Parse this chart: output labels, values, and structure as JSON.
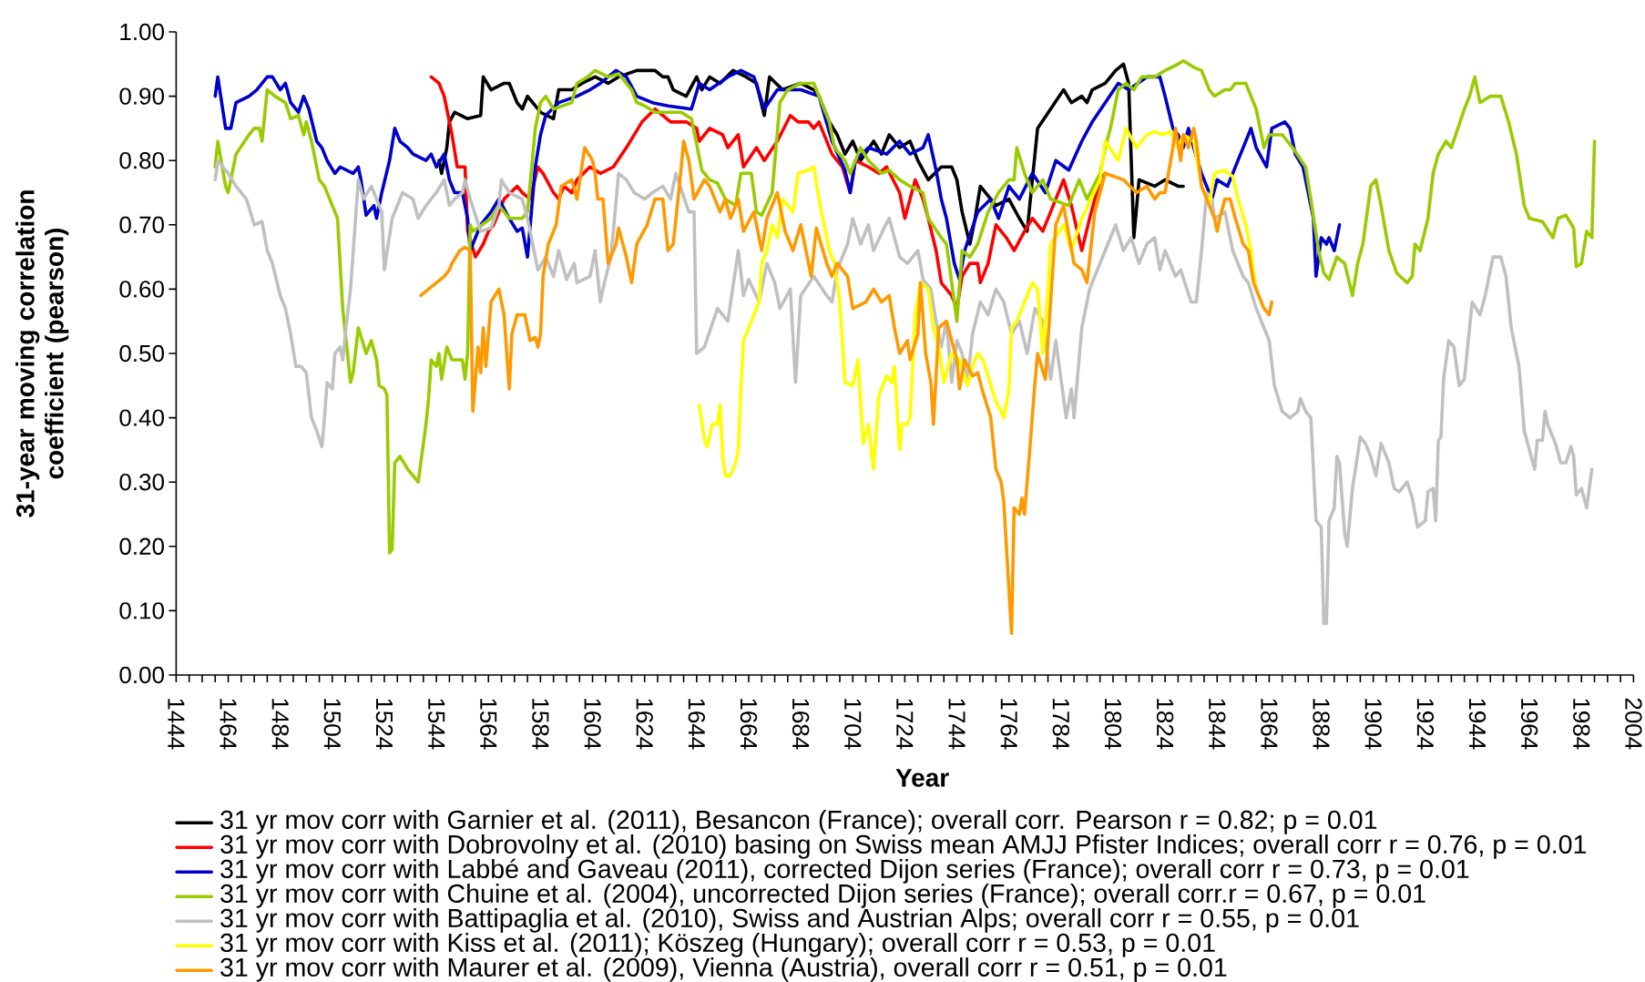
{
  "chart_data": {
    "type": "line",
    "xlabel": "Year",
    "ylabel": "31-year moving correlation coefficient (pearson)",
    "xlim": [
      1444,
      2004
    ],
    "ylim": [
      0,
      1
    ],
    "xticks": [
      1444,
      {
        "value": 1449,
        "label": null
      },
      {
        "value": 1454,
        "label": null
      },
      {
        "value": 1459,
        "label": null
      },
      1464,
      {
        "value": 1469,
        "label": null
      },
      {
        "value": 1474,
        "label": null
      },
      {
        "value": 1479,
        "label": null
      },
      1484,
      {
        "value": 1489,
        "label": null
      },
      {
        "value": 1494,
        "label": null
      },
      {
        "value": 1499,
        "label": null
      },
      1504,
      {
        "value": 1509,
        "label": null
      },
      {
        "value": 1514,
        "label": null
      },
      {
        "value": 1519,
        "label": null
      },
      1524,
      {
        "value": 1529,
        "label": null
      },
      {
        "value": 1534,
        "label": null
      },
      {
        "value": 1539,
        "label": null
      },
      1544,
      {
        "value": 1549,
        "label": null
      },
      {
        "value": 1554,
        "label": null
      },
      {
        "value": 1559,
        "label": null
      },
      1564,
      {
        "value": 1569,
        "label": null
      },
      {
        "value": 1574,
        "label": null
      },
      {
        "value": 1579,
        "label": null
      },
      1584,
      {
        "value": 1589,
        "label": null
      },
      {
        "value": 1594,
        "label": null
      },
      {
        "value": 1599,
        "label": null
      },
      1604,
      {
        "value": 1609,
        "label": null
      },
      {
        "value": 1614,
        "label": null
      },
      {
        "value": 1619,
        "label": null
      },
      1624,
      {
        "value": 1629,
        "label": null
      },
      {
        "value": 1634,
        "label": null
      },
      {
        "value": 1639,
        "label": null
      },
      1644,
      {
        "value": 1649,
        "label": null
      },
      {
        "value": 1654,
        "label": null
      },
      {
        "value": 1659,
        "label": null
      },
      1664,
      {
        "value": 1669,
        "label": null
      },
      {
        "value": 1674,
        "label": null
      },
      {
        "value": 1679,
        "label": null
      },
      1684,
      {
        "value": 1689,
        "label": null
      },
      {
        "value": 1694,
        "label": null
      },
      {
        "value": 1699,
        "label": null
      },
      1704,
      {
        "value": 1709,
        "label": null
      },
      {
        "value": 1714,
        "label": null
      },
      {
        "value": 1719,
        "label": null
      },
      1724,
      {
        "value": 1729,
        "label": null
      },
      {
        "value": 1734,
        "label": null
      },
      {
        "value": 1739,
        "label": null
      },
      1744,
      {
        "value": 1749,
        "label": null
      },
      {
        "value": 1754,
        "label": null
      },
      {
        "value": 1759,
        "label": null
      },
      1764,
      {
        "value": 1769,
        "label": null
      },
      {
        "value": 1774,
        "label": null
      },
      {
        "value": 1779,
        "label": null
      },
      1784,
      {
        "value": 1789,
        "label": null
      },
      {
        "value": 1794,
        "label": null
      },
      {
        "value": 1799,
        "label": null
      },
      1804,
      {
        "value": 1809,
        "label": null
      },
      {
        "value": 1814,
        "label": null
      },
      {
        "value": 1819,
        "label": null
      },
      1824,
      {
        "value": 1829,
        "label": null
      },
      {
        "value": 1834,
        "label": null
      },
      {
        "value": 1839,
        "label": null
      },
      1844,
      {
        "value": 1849,
        "label": null
      },
      {
        "value": 1854,
        "label": null
      },
      {
        "value": 1859,
        "label": null
      },
      1864,
      {
        "value": 1869,
        "label": null
      },
      {
        "value": 1874,
        "label": null
      },
      {
        "value": 1879,
        "label": null
      },
      1884,
      {
        "value": 1889,
        "label": null
      },
      {
        "value": 1894,
        "label": null
      },
      {
        "value": 1899,
        "label": null
      },
      1904,
      {
        "value": 1909,
        "label": null
      },
      {
        "value": 1914,
        "label": null
      },
      {
        "value": 1919,
        "label": null
      },
      1924,
      {
        "value": 1929,
        "label": null
      },
      {
        "value": 1934,
        "label": null
      },
      {
        "value": 1939,
        "label": null
      },
      1944,
      {
        "value": 1949,
        "label": null
      },
      {
        "value": 1954,
        "label": null
      },
      {
        "value": 1959,
        "label": null
      },
      1964,
      {
        "value": 1969,
        "label": null
      },
      {
        "value": 1974,
        "label": null
      },
      {
        "value": 1979,
        "label": null
      },
      1984,
      {
        "value": 1989,
        "label": null
      },
      {
        "value": 1994,
        "label": null
      },
      {
        "value": 1999,
        "label": null
      },
      2004
    ],
    "yticks": [
      {
        "value": 0,
        "label": "0.00"
      },
      {
        "value": 0.1,
        "label": "0.10"
      },
      {
        "value": 0.2,
        "label": "0.20"
      },
      {
        "value": 0.3,
        "label": "0.30"
      },
      {
        "value": 0.4,
        "label": "0.40"
      },
      {
        "value": 0.5,
        "label": "0.50"
      },
      {
        "value": 0.6,
        "label": "0.60"
      },
      {
        "value": 0.7,
        "label": "0.70"
      },
      {
        "value": 0.8,
        "label": "0.80"
      },
      {
        "value": 0.9,
        "label": "0.90"
      },
      {
        "value": 1,
        "label": "1.00"
      }
    ],
    "legend": "bottom",
    "series": [
      {
        "name": "31 yr mov corr with Garnier et al. (2011), Besancon (France); overall corr. Pearson r = 0.82; p = 0.01",
        "color": "#000000",
        "x": [
          1545,
          1546,
          1548,
          1549,
          1551,
          1556,
          1561,
          1562,
          1565,
          1570,
          1572,
          1575,
          1577,
          1579,
          1584,
          1589,
          1591,
          1596,
          1600,
          1605,
          1610,
          1614,
          1621,
          1628,
          1631,
          1633,
          1635,
          1640,
          1644,
          1646,
          1649,
          1653,
          1658,
          1663,
          1667,
          1670,
          1672,
          1677,
          1684,
          1689,
          1691,
          1695,
          1698,
          1701,
          1704,
          1707,
          1712,
          1715,
          1718,
          1722,
          1726,
          1729,
          1733,
          1738,
          1742,
          1744,
          1746,
          1749,
          1751,
          1753,
          1759,
          1764,
          1768,
          1771,
          1773,
          1775,
          1780,
          1785,
          1788,
          1792,
          1794,
          1796,
          1801,
          1805,
          1808,
          1810,
          1812,
          1814,
          1820,
          1824,
          1829,
          1831
        ],
        "values": [
          0.8,
          0.78,
          0.82,
          0.86,
          0.875,
          0.865,
          0.87,
          0.93,
          0.91,
          0.92,
          0.92,
          0.89,
          0.88,
          0.9,
          0.875,
          0.865,
          0.91,
          0.91,
          0.92,
          0.93,
          0.92,
          0.93,
          0.94,
          0.94,
          0.93,
          0.93,
          0.91,
          0.9,
          0.93,
          0.91,
          0.93,
          0.92,
          0.94,
          0.93,
          0.92,
          0.87,
          0.93,
          0.91,
          0.92,
          0.91,
          0.9,
          0.86,
          0.84,
          0.81,
          0.83,
          0.8,
          0.83,
          0.81,
          0.84,
          0.82,
          0.83,
          0.8,
          0.77,
          0.79,
          0.79,
          0.77,
          0.72,
          0.67,
          0.71,
          0.76,
          0.73,
          0.74,
          0.71,
          0.69,
          0.77,
          0.85,
          0.88,
          0.91,
          0.89,
          0.9,
          0.89,
          0.91,
          0.92,
          0.94,
          0.95,
          0.92,
          0.68,
          0.77,
          0.76,
          0.77,
          0.76,
          0.76
        ]
      },
      {
        "name": "31 yr mov corr with Dobrovolny et al. (2010) basing on Swiss mean AMJJ Pfister Indices; overall corr r = 0.76, p = 0.01",
        "color": "#ff0000",
        "x": [
          1542,
          1545,
          1547,
          1550,
          1552,
          1555,
          1556,
          1559,
          1562,
          1564,
          1566,
          1570,
          1575,
          1577,
          1580,
          1583,
          1585,
          1589,
          1591,
          1593,
          1596,
          1598,
          1603,
          1607,
          1612,
          1617,
          1620,
          1623,
          1628,
          1631,
          1634,
          1640,
          1644,
          1645,
          1649,
          1654,
          1656,
          1660,
          1662,
          1667,
          1670,
          1675,
          1680,
          1683,
          1687,
          1689,
          1691,
          1696,
          1700,
          1703,
          1705,
          1710,
          1714,
          1717,
          1722,
          1724,
          1728,
          1731,
          1733,
          1736,
          1738,
          1742,
          1744,
          1746,
          1749,
          1752,
          1753,
          1756,
          1759,
          1763,
          1766,
          1770,
          1773,
          1777,
          1782,
          1785,
          1788,
          1792,
          1795,
          1799,
          1801
        ],
        "values": [
          0.93,
          0.92,
          0.9,
          0.84,
          0.79,
          0.79,
          0.69,
          0.65,
          0.67,
          0.69,
          0.7,
          0.74,
          0.76,
          0.75,
          0.74,
          0.79,
          0.78,
          0.75,
          0.74,
          0.76,
          0.75,
          0.77,
          0.79,
          0.78,
          0.79,
          0.82,
          0.84,
          0.86,
          0.88,
          0.87,
          0.86,
          0.86,
          0.85,
          0.83,
          0.85,
          0.84,
          0.82,
          0.84,
          0.79,
          0.82,
          0.8,
          0.83,
          0.87,
          0.86,
          0.86,
          0.85,
          0.86,
          0.81,
          0.79,
          0.75,
          0.8,
          0.79,
          0.78,
          0.79,
          0.75,
          0.71,
          0.77,
          0.74,
          0.71,
          0.66,
          0.61,
          0.59,
          0.57,
          0.62,
          0.64,
          0.64,
          0.61,
          0.64,
          0.7,
          0.68,
          0.66,
          0.69,
          0.71,
          0.69,
          0.74,
          0.77,
          0.73,
          0.66,
          0.71,
          0.77,
          0.78
        ]
      },
      {
        "name": "31 yr mov corr with Labbé and Gaveau (2011), corrected Dijon series (France); overall corr r = 0.73, p = 0.01",
        "color": "#0000cc",
        "x": [
          1459,
          1460,
          1463,
          1465,
          1467,
          1472,
          1475,
          1479,
          1481,
          1484,
          1486,
          1488,
          1491,
          1493,
          1495,
          1498,
          1500,
          1502,
          1505,
          1507,
          1512,
          1514,
          1515,
          1517,
          1520,
          1521,
          1523,
          1526,
          1528,
          1530,
          1533,
          1535,
          1540,
          1542,
          1544,
          1547,
          1549,
          1551,
          1554,
          1556,
          1557,
          1561,
          1565,
          1568,
          1572,
          1575,
          1577,
          1579,
          1582,
          1584,
          1586,
          1591,
          1598,
          1603,
          1607,
          1613,
          1617,
          1621,
          1627,
          1633,
          1642,
          1645,
          1649,
          1656,
          1661,
          1666,
          1670,
          1675,
          1684,
          1691,
          1696,
          1701,
          1703,
          1705,
          1710,
          1717,
          1722,
          1726,
          1731,
          1733,
          1736,
          1738,
          1740,
          1743,
          1745,
          1747,
          1752,
          1757,
          1760,
          1764,
          1768,
          1773,
          1778,
          1782,
          1787,
          1792,
          1796,
          1801,
          1806,
          1810,
          1817,
          1822,
          1824,
          1827,
          1829,
          1831,
          1833,
          1835,
          1838,
          1842,
          1844,
          1848,
          1850,
          1852,
          1854,
          1857,
          1859,
          1863,
          1865,
          1870,
          1872,
          1874,
          1877,
          1879,
          1881,
          1882,
          1884,
          1886,
          1887,
          1889,
          1891
        ],
        "values": [
          0.9,
          0.93,
          0.85,
          0.85,
          0.89,
          0.9,
          0.91,
          0.93,
          0.93,
          0.91,
          0.92,
          0.89,
          0.875,
          0.9,
          0.88,
          0.83,
          0.82,
          0.8,
          0.78,
          0.79,
          0.78,
          0.79,
          0.77,
          0.715,
          0.73,
          0.71,
          0.75,
          0.8,
          0.85,
          0.83,
          0.82,
          0.81,
          0.8,
          0.81,
          0.79,
          0.81,
          0.77,
          0.75,
          0.75,
          0.71,
          0.66,
          0.7,
          0.72,
          0.74,
          0.71,
          0.69,
          0.695,
          0.65,
          0.79,
          0.84,
          0.87,
          0.89,
          0.9,
          0.91,
          0.92,
          0.94,
          0.93,
          0.9,
          0.89,
          0.885,
          0.88,
          0.92,
          0.91,
          0.93,
          0.94,
          0.93,
          0.88,
          0.91,
          0.91,
          0.9,
          0.83,
          0.785,
          0.75,
          0.8,
          0.82,
          0.81,
          0.83,
          0.81,
          0.82,
          0.84,
          0.785,
          0.74,
          0.71,
          0.64,
          0.615,
          0.66,
          0.72,
          0.74,
          0.71,
          0.76,
          0.74,
          0.78,
          0.75,
          0.8,
          0.785,
          0.83,
          0.86,
          0.89,
          0.92,
          0.91,
          0.93,
          0.93,
          0.9,
          0.85,
          0.84,
          0.82,
          0.85,
          0.82,
          0.78,
          0.74,
          0.77,
          0.76,
          0.78,
          0.8,
          0.82,
          0.85,
          0.82,
          0.79,
          0.85,
          0.86,
          0.85,
          0.81,
          0.79,
          0.75,
          0.71,
          0.62,
          0.68,
          0.67,
          0.68,
          0.66,
          0.7
        ]
      },
      {
        "name": "31 yr mov corr with Chuine et al. (2004), uncorrected Dijon series (France); overall corr.r = 0.67, p = 0.01",
        "color": "#99cc00",
        "x": [
          1459,
          1460,
          1463,
          1464,
          1467,
          1472,
          1474,
          1476,
          1477,
          1479,
          1482,
          1486,
          1488,
          1491,
          1493,
          1494,
          1496,
          1499,
          1501,
          1503,
          1505,
          1506,
          1508,
          1511,
          1512,
          1514,
          1517,
          1519,
          1521,
          1522,
          1524,
          1525,
          1526,
          1527,
          1528,
          1530,
          1533,
          1535,
          1537,
          1540,
          1541,
          1542,
          1544,
          1545,
          1546,
          1548,
          1550,
          1554,
          1555,
          1556,
          1557,
          1558,
          1565,
          1568,
          1572,
          1577,
          1579,
          1582,
          1584,
          1586,
          1589,
          1596,
          1598,
          1602,
          1605,
          1610,
          1614,
          1619,
          1621,
          1624,
          1628,
          1638,
          1642,
          1646,
          1649,
          1652,
          1655,
          1659,
          1661,
          1665,
          1667,
          1669,
          1673,
          1676,
          1679,
          1684,
          1689,
          1691,
          1695,
          1697,
          1701,
          1703,
          1707,
          1710,
          1715,
          1718,
          1722,
          1726,
          1731,
          1733,
          1738,
          1740,
          1742,
          1744,
          1746,
          1749,
          1752,
          1756,
          1760,
          1764,
          1766,
          1767,
          1770,
          1773,
          1777,
          1780,
          1787,
          1791,
          1794,
          1799,
          1801,
          1803,
          1806,
          1809,
          1812,
          1815,
          1820,
          1824,
          1829,
          1831,
          1835,
          1838,
          1841,
          1843,
          1847,
          1849,
          1851,
          1855,
          1857,
          1859,
          1862,
          1864,
          1869,
          1873,
          1878,
          1880,
          1883,
          1885,
          1887,
          1890,
          1893,
          1896,
          1898,
          1900,
          1903,
          1905,
          1907,
          1910,
          1913,
          1917,
          1919,
          1920,
          1922,
          1925,
          1927,
          1929,
          1932,
          1934,
          1939,
          1941,
          1943,
          1945,
          1949,
          1953,
          1956,
          1959,
          1962,
          1964,
          1969,
          1973,
          1975,
          1978,
          1981,
          1982,
          1984,
          1986,
          1988,
          1989
        ],
        "values": [
          0.79,
          0.83,
          0.76,
          0.75,
          0.81,
          0.84,
          0.85,
          0.85,
          0.83,
          0.91,
          0.9,
          0.89,
          0.865,
          0.87,
          0.84,
          0.86,
          0.83,
          0.77,
          0.76,
          0.74,
          0.72,
          0.71,
          0.57,
          0.455,
          0.47,
          0.54,
          0.5,
          0.52,
          0.49,
          0.45,
          0.445,
          0.435,
          0.19,
          0.195,
          0.33,
          0.34,
          0.32,
          0.31,
          0.3,
          0.39,
          0.43,
          0.49,
          0.48,
          0.5,
          0.46,
          0.51,
          0.49,
          0.49,
          0.46,
          0.5,
          0.7,
          0.69,
          0.71,
          0.73,
          0.71,
          0.71,
          0.72,
          0.85,
          0.89,
          0.9,
          0.88,
          0.89,
          0.92,
          0.93,
          0.94,
          0.93,
          0.935,
          0.91,
          0.89,
          0.885,
          0.875,
          0.875,
          0.865,
          0.785,
          0.77,
          0.765,
          0.74,
          0.73,
          0.78,
          0.78,
          0.72,
          0.715,
          0.75,
          0.89,
          0.91,
          0.92,
          0.92,
          0.9,
          0.86,
          0.82,
          0.8,
          0.78,
          0.82,
          0.8,
          0.78,
          0.785,
          0.77,
          0.76,
          0.75,
          0.71,
          0.68,
          0.67,
          0.61,
          0.55,
          0.66,
          0.65,
          0.67,
          0.72,
          0.75,
          0.77,
          0.77,
          0.82,
          0.78,
          0.75,
          0.77,
          0.74,
          0.73,
          0.77,
          0.74,
          0.78,
          0.82,
          0.85,
          0.91,
          0.92,
          0.91,
          0.93,
          0.93,
          0.94,
          0.95,
          0.955,
          0.945,
          0.94,
          0.91,
          0.9,
          0.91,
          0.91,
          0.92,
          0.92,
          0.9,
          0.88,
          0.82,
          0.84,
          0.84,
          0.82,
          0.79,
          0.74,
          0.66,
          0.625,
          0.615,
          0.65,
          0.64,
          0.59,
          0.64,
          0.67,
          0.76,
          0.77,
          0.73,
          0.66,
          0.625,
          0.61,
          0.62,
          0.67,
          0.66,
          0.71,
          0.78,
          0.81,
          0.83,
          0.82,
          0.88,
          0.9,
          0.93,
          0.89,
          0.9,
          0.9,
          0.86,
          0.81,
          0.73,
          0.71,
          0.705,
          0.68,
          0.71,
          0.715,
          0.695,
          0.635,
          0.64,
          0.69,
          0.68,
          0.83
        ]
      },
      {
        "name": "31 yr mov corr with Battipaglia et al. (2010), Swiss and Austrian Alps; overall corr r = 0.55, p = 0.01",
        "color": "#c0c0c0",
        "x": [
          1459,
          1460,
          1464,
          1467,
          1471,
          1474,
          1477,
          1479,
          1481,
          1484,
          1486,
          1488,
          1490,
          1492,
          1494,
          1496,
          1498,
          1500,
          1501,
          1502,
          1504,
          1505,
          1507,
          1508,
          1509,
          1511,
          1514,
          1516,
          1519,
          1521,
          1523,
          1524,
          1527,
          1529,
          1531,
          1535,
          1537,
          1540,
          1544,
          1547,
          1549,
          1551,
          1554,
          1555,
          1557,
          1561,
          1565,
          1568,
          1569,
          1572,
          1577,
          1579,
          1583,
          1586,
          1589,
          1591,
          1594,
          1597,
          1598,
          1603,
          1605,
          1607,
          1608,
          1611,
          1612,
          1614,
          1617,
          1620,
          1624,
          1627,
          1631,
          1634,
          1636,
          1641,
          1643,
          1644,
          1647,
          1652,
          1656,
          1660,
          1662,
          1664,
          1668,
          1671,
          1674,
          1676,
          1680,
          1682,
          1684,
          1689,
          1694,
          1696,
          1698,
          1702,
          1704,
          1707,
          1710,
          1712,
          1716,
          1718,
          1722,
          1725,
          1729,
          1731,
          1734,
          1736,
          1738,
          1740,
          1742,
          1744,
          1746,
          1748,
          1750,
          1753,
          1756,
          1759,
          1762,
          1765,
          1768,
          1771,
          1774,
          1777,
          1780,
          1782,
          1786,
          1788,
          1789,
          1792,
          1795,
          1798,
          1801,
          1805,
          1808,
          1811,
          1814,
          1817,
          1820,
          1822,
          1824,
          1828,
          1830,
          1834,
          1836,
          1838,
          1840,
          1842,
          1843,
          1847,
          1850,
          1854,
          1856,
          1859,
          1862,
          1864,
          1866,
          1869,
          1872,
          1875,
          1876,
          1878,
          1880,
          1882,
          1884,
          1885,
          1886,
          1887,
          1889,
          1890,
          1891,
          1893,
          1894,
          1896,
          1899,
          1901,
          1903,
          1905,
          1907,
          1910,
          1912,
          1914,
          1917,
          1919,
          1921,
          1924,
          1925,
          1927,
          1928,
          1929,
          1930,
          1931,
          1933,
          1935,
          1937,
          1939,
          1941,
          1942,
          1945,
          1947,
          1950,
          1953,
          1955,
          1957,
          1960,
          1962,
          1964,
          1966,
          1967,
          1969,
          1970,
          1971,
          1974,
          1976,
          1978,
          1980,
          1981,
          1982,
          1984,
          1986,
          1987,
          1988
        ],
        "values": [
          0.77,
          0.8,
          0.78,
          0.76,
          0.74,
          0.7,
          0.705,
          0.66,
          0.64,
          0.59,
          0.57,
          0.53,
          0.48,
          0.48,
          0.47,
          0.4,
          0.38,
          0.355,
          0.4,
          0.455,
          0.445,
          0.5,
          0.51,
          0.49,
          0.53,
          0.6,
          0.77,
          0.74,
          0.76,
          0.74,
          0.72,
          0.63,
          0.71,
          0.73,
          0.75,
          0.74,
          0.71,
          0.73,
          0.75,
          0.77,
          0.73,
          0.74,
          0.75,
          0.77,
          0.74,
          0.69,
          0.695,
          0.73,
          0.77,
          0.75,
          0.74,
          0.71,
          0.63,
          0.65,
          0.62,
          0.66,
          0.615,
          0.64,
          0.61,
          0.62,
          0.66,
          0.58,
          0.6,
          0.65,
          0.69,
          0.78,
          0.77,
          0.75,
          0.74,
          0.75,
          0.76,
          0.74,
          0.78,
          0.72,
          0.72,
          0.5,
          0.51,
          0.57,
          0.55,
          0.66,
          0.59,
          0.615,
          0.58,
          0.64,
          0.61,
          0.57,
          0.6,
          0.455,
          0.59,
          0.62,
          0.59,
          0.58,
          0.63,
          0.67,
          0.71,
          0.67,
          0.7,
          0.66,
          0.695,
          0.71,
          0.65,
          0.64,
          0.66,
          0.615,
          0.6,
          0.55,
          0.51,
          0.55,
          0.455,
          0.52,
          0.5,
          0.455,
          0.53,
          0.58,
          0.56,
          0.6,
          0.58,
          0.53,
          0.55,
          0.5,
          0.57,
          0.55,
          0.46,
          0.52,
          0.4,
          0.445,
          0.4,
          0.54,
          0.6,
          0.63,
          0.66,
          0.7,
          0.66,
          0.68,
          0.64,
          0.67,
          0.68,
          0.63,
          0.66,
          0.62,
          0.63,
          0.58,
          0.58,
          0.66,
          0.75,
          0.74,
          0.71,
          0.72,
          0.66,
          0.62,
          0.61,
          0.57,
          0.54,
          0.52,
          0.45,
          0.41,
          0.4,
          0.41,
          0.43,
          0.41,
          0.4,
          0.24,
          0.23,
          0.08,
          0.08,
          0.24,
          0.26,
          0.34,
          0.33,
          0.22,
          0.2,
          0.29,
          0.37,
          0.36,
          0.34,
          0.31,
          0.36,
          0.33,
          0.29,
          0.285,
          0.3,
          0.275,
          0.23,
          0.24,
          0.285,
          0.29,
          0.24,
          0.365,
          0.37,
          0.46,
          0.52,
          0.51,
          0.45,
          0.46,
          0.54,
          0.58,
          0.56,
          0.59,
          0.65,
          0.65,
          0.62,
          0.54,
          0.48,
          0.38,
          0.35,
          0.32,
          0.365,
          0.365,
          0.41,
          0.39,
          0.36,
          0.33,
          0.33,
          0.355,
          0.34,
          0.28,
          0.29,
          0.26,
          0.29,
          0.32
        ]
      },
      {
        "name": "31 yr mov corr with Kiss et al. (2011); Köszeg (Hungary); overall corr r = 0.53, p = 0.01",
        "color": "#ffff00",
        "x": [
          1645,
          1647,
          1648,
          1650,
          1652,
          1653,
          1654,
          1655,
          1657,
          1659,
          1660,
          1661,
          1662,
          1664,
          1668,
          1669,
          1671,
          1673,
          1675,
          1677,
          1681,
          1683,
          1687,
          1689,
          1691,
          1695,
          1697,
          1699,
          1701,
          1704,
          1706,
          1708,
          1710,
          1712,
          1714,
          1717,
          1719,
          1720,
          1722,
          1723,
          1725,
          1726,
          1728,
          1730,
          1733,
          1735,
          1737,
          1739,
          1742,
          1745,
          1748,
          1750,
          1752,
          1754,
          1756,
          1759,
          1761,
          1762,
          1764,
          1765,
          1767,
          1770,
          1773,
          1775,
          1777,
          1779,
          1780,
          1785,
          1788,
          1792,
          1799,
          1801,
          1806,
          1809,
          1813,
          1817,
          1820,
          1823,
          1826,
          1829,
          1831,
          1835,
          1838,
          1841,
          1843,
          1847,
          1850,
          1852,
          1855,
          1857,
          1858,
          1859
        ],
        "values": [
          0.42,
          0.365,
          0.355,
          0.39,
          0.39,
          0.42,
          0.34,
          0.31,
          0.31,
          0.33,
          0.35,
          0.445,
          0.52,
          0.54,
          0.58,
          0.64,
          0.66,
          0.7,
          0.68,
          0.74,
          0.72,
          0.78,
          0.785,
          0.79,
          0.74,
          0.66,
          0.64,
          0.58,
          0.455,
          0.45,
          0.49,
          0.36,
          0.39,
          0.32,
          0.435,
          0.465,
          0.455,
          0.48,
          0.35,
          0.39,
          0.39,
          0.4,
          0.56,
          0.61,
          0.6,
          0.54,
          0.51,
          0.455,
          0.5,
          0.49,
          0.45,
          0.48,
          0.5,
          0.49,
          0.465,
          0.425,
          0.41,
          0.4,
          0.445,
          0.54,
          0.55,
          0.58,
          0.61,
          0.6,
          0.5,
          0.6,
          0.67,
          0.7,
          0.66,
          0.71,
          0.77,
          0.83,
          0.8,
          0.85,
          0.82,
          0.84,
          0.845,
          0.84,
          0.845,
          0.82,
          0.84,
          0.83,
          0.76,
          0.73,
          0.78,
          0.785,
          0.775,
          0.74,
          0.7,
          0.66,
          0.625,
          0.6
        ]
      },
      {
        "name": "31 yr mov corr with Maurer et al. (2009), Vienna (Austria), overall corr r = 0.51, p = 0.01",
        "color": "#ff9900",
        "x": [
          1538,
          1541,
          1544,
          1547,
          1549,
          1550,
          1553,
          1555,
          1557,
          1558,
          1560,
          1561,
          1562,
          1563,
          1565,
          1568,
          1570,
          1572,
          1573,
          1575,
          1578,
          1580,
          1582,
          1583,
          1584,
          1585,
          1587,
          1590,
          1592,
          1596,
          1598,
          1601,
          1604,
          1605,
          1606,
          1608,
          1610,
          1613,
          1614,
          1617,
          1619,
          1621,
          1625,
          1628,
          1631,
          1633,
          1635,
          1638,
          1639,
          1641,
          1643,
          1647,
          1649,
          1653,
          1655,
          1657,
          1660,
          1662,
          1666,
          1669,
          1671,
          1675,
          1678,
          1681,
          1684,
          1688,
          1690,
          1694,
          1696,
          1698,
          1702,
          1704,
          1709,
          1712,
          1715,
          1718,
          1720,
          1722,
          1725,
          1726,
          1729,
          1730,
          1732,
          1734,
          1735,
          1737,
          1740,
          1744,
          1745,
          1747,
          1750,
          1752,
          1754,
          1757,
          1759,
          1761,
          1762,
          1765,
          1766,
          1768,
          1769,
          1770,
          1771,
          1772,
          1774,
          1775,
          1778,
          1780,
          1782,
          1785,
          1789,
          1792,
          1794,
          1797,
          1801,
          1808,
          1813,
          1817,
          1820,
          1822,
          1824,
          1827,
          1828,
          1830,
          1831,
          1833,
          1835,
          1836,
          1838,
          1841,
          1843,
          1844,
          1845,
          1847,
          1849,
          1851,
          1854,
          1856,
          1858,
          1861,
          1862,
          1864,
          1865
        ],
        "values": [
          0.59,
          0.6,
          0.61,
          0.62,
          0.63,
          0.64,
          0.66,
          0.665,
          0.66,
          0.41,
          0.51,
          0.47,
          0.54,
          0.48,
          0.58,
          0.6,
          0.56,
          0.445,
          0.53,
          0.56,
          0.56,
          0.52,
          0.525,
          0.51,
          0.53,
          0.62,
          0.67,
          0.7,
          0.76,
          0.77,
          0.74,
          0.82,
          0.8,
          0.78,
          0.74,
          0.74,
          0.64,
          0.67,
          0.695,
          0.65,
          0.61,
          0.67,
          0.7,
          0.74,
          0.74,
          0.66,
          0.67,
          0.785,
          0.83,
          0.8,
          0.74,
          0.77,
          0.76,
          0.72,
          0.74,
          0.71,
          0.74,
          0.69,
          0.72,
          0.66,
          0.71,
          0.75,
          0.69,
          0.66,
          0.7,
          0.62,
          0.695,
          0.64,
          0.62,
          0.64,
          0.62,
          0.57,
          0.58,
          0.6,
          0.58,
          0.59,
          0.54,
          0.5,
          0.52,
          0.49,
          0.53,
          0.61,
          0.5,
          0.455,
          0.39,
          0.54,
          0.55,
          0.49,
          0.445,
          0.49,
          0.465,
          0.47,
          0.44,
          0.4,
          0.32,
          0.3,
          0.27,
          0.065,
          0.26,
          0.25,
          0.275,
          0.25,
          0.3,
          0.35,
          0.455,
          0.5,
          0.46,
          0.58,
          0.7,
          0.73,
          0.64,
          0.63,
          0.61,
          0.72,
          0.78,
          0.77,
          0.75,
          0.76,
          0.74,
          0.75,
          0.75,
          0.82,
          0.85,
          0.8,
          0.84,
          0.82,
          0.85,
          0.83,
          0.76,
          0.73,
          0.71,
          0.69,
          0.71,
          0.74,
          0.74,
          0.71,
          0.67,
          0.66,
          0.61,
          0.58,
          0.57,
          0.56,
          0.58
        ]
      }
    ]
  }
}
